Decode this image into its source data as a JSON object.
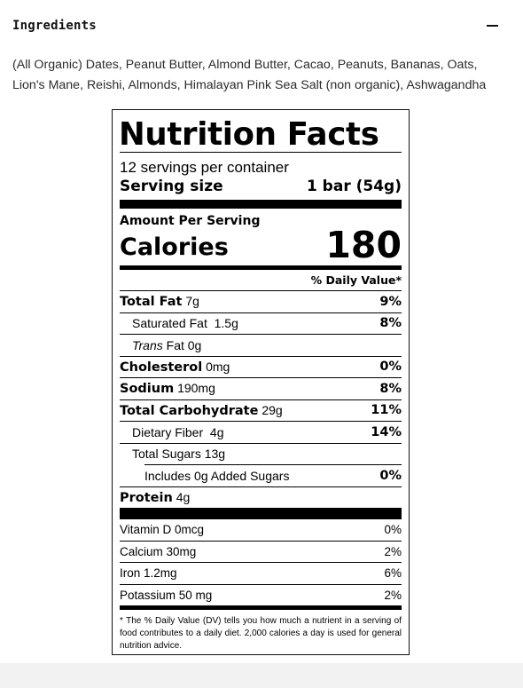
{
  "accordion": {
    "title": "Ingredients",
    "toggle_icon": "minus-icon",
    "text": "(All Organic) Dates, Peanut Butter, Almond Butter, Cacao, Peanuts, Bananas, Oats, Lion's Mane, Reishi, Almonds, Himalayan Pink Sea Salt (non organic), Ashwagandha"
  },
  "nutrition": {
    "title": "Nutrition Facts",
    "servings_per_container": "12 servings per container",
    "serving_size_label": "Serving size",
    "serving_size_value": "1 bar (54g)",
    "amount_per_serving": "Amount Per Serving",
    "calories_label": "Calories",
    "calories_value": "180",
    "dv_header": "% Daily Value*",
    "total_fat": {
      "label": "Total Fat",
      "amount": "7g",
      "dv": "9%"
    },
    "saturated_fat": {
      "label": "Saturated Fat",
      "amount": "1.5g",
      "dv": "8%"
    },
    "trans_fat": {
      "label_italic": "Trans",
      "label": "Fat",
      "amount": "0g"
    },
    "cholesterol": {
      "label": "Cholesterol",
      "amount": "0mg",
      "dv": "0%"
    },
    "sodium": {
      "label": "Sodium",
      "amount": "190mg",
      "dv": "8%"
    },
    "total_carb": {
      "label": "Total Carbohydrate",
      "amount": "29g",
      "dv": "11%"
    },
    "dietary_fiber": {
      "label": "Dietary Fiber",
      "amount": "4g",
      "dv": "14%"
    },
    "total_sugars": {
      "label": "Total Sugars",
      "amount": "13g"
    },
    "added_sugars": {
      "label": "Includes 0g Added Sugars",
      "dv": "0%"
    },
    "protein": {
      "label": "Protein",
      "amount": "4g"
    },
    "vitamin_d": {
      "label": "Vitamin D 0mcg",
      "dv": "0%"
    },
    "calcium": {
      "label": "Calcium 30mg",
      "dv": "2%"
    },
    "iron": {
      "label": "Iron 1.2mg",
      "dv": "6%"
    },
    "potassium": {
      "label": "Potassium 50 mg",
      "dv": "2%"
    },
    "footnote": "* The % Daily Value (DV) tells you how much a nutrient in a serving of food contributes to a daily diet. 2,000 calories a day is used for general nutrition advice."
  }
}
